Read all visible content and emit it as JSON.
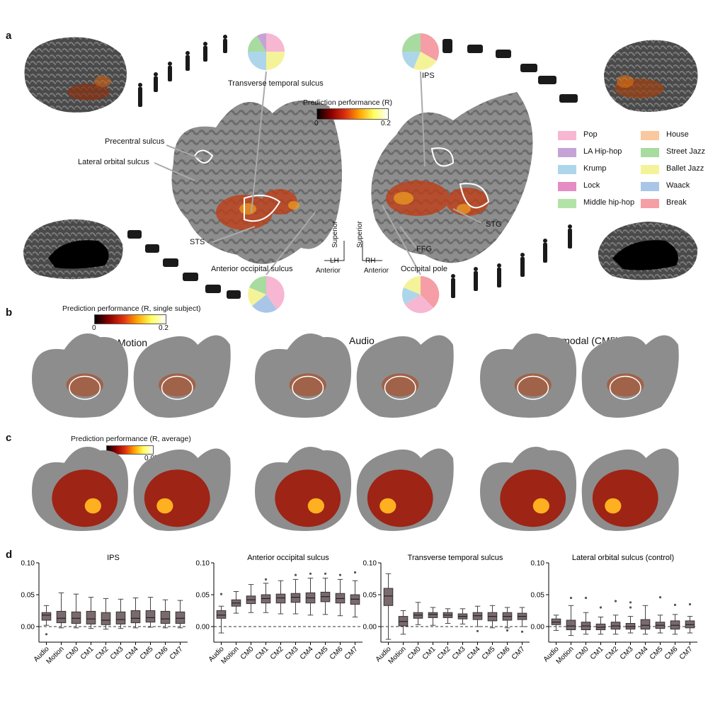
{
  "panel_labels": {
    "a": "a",
    "b": "b",
    "c": "c",
    "d": "d"
  },
  "panel_a": {
    "colorbar": {
      "title": "Prediction performance (R)",
      "min": "0",
      "max": "0.2"
    },
    "region_labels": {
      "transverse_temporal": "Transverse temporal sulcus",
      "ips": "IPS",
      "precentral": "Precentral sulcus",
      "lateral_orbital": "Lateral orbital sulcus",
      "sts": "STS",
      "stg": "STG",
      "ffg": "FFG",
      "anterior_occipital": "Anterior occipital sulcus",
      "occipital_pole": "Occipital pole"
    },
    "orientation": {
      "lh": "LH",
      "rh": "RH",
      "superior_l": "Superior",
      "superior_r": "Superior",
      "anterior_l": "Anterior",
      "anterior_r": "Anterior"
    },
    "legend": [
      {
        "label": "Pop",
        "color": "#f7b6d2"
      },
      {
        "label": "House",
        "color": "#f9c89f"
      },
      {
        "label": "LA Hip-hop",
        "color": "#c5a3d6"
      },
      {
        "label": "Street Jazz",
        "color": "#a8dba0"
      },
      {
        "label": "Krump",
        "color": "#aed6ea"
      },
      {
        "label": "Ballet Jazz",
        "color": "#f4f39a"
      },
      {
        "label": "Lock",
        "color": "#e58cc4"
      },
      {
        "label": "Waack",
        "color": "#a9c6e8"
      },
      {
        "label": "Middle hip-hop",
        "color": "#b2e3a6"
      },
      {
        "label": "Break",
        "color": "#f59ea5"
      }
    ]
  },
  "panel_b": {
    "colorbar": {
      "title": "Prediction performance (R, single subject)",
      "min": "0",
      "max": "0.2"
    },
    "maps": [
      "Motion",
      "Audio",
      "Cross-modal (CM5)"
    ]
  },
  "panel_c": {
    "colorbar": {
      "title": "Prediction performance (R, average)",
      "min": "0",
      "max": "0.05"
    }
  },
  "chart_data": [
    {
      "type": "box",
      "title": "IPS",
      "categories": [
        "Audio",
        "Motion",
        "CM0",
        "CM1",
        "CM2",
        "CM3",
        "CM4",
        "CM5",
        "CM6",
        "CM7"
      ],
      "ylim": [
        -0.02,
        0.1
      ],
      "yticks": [
        "0.00",
        "0.05",
        "0.10"
      ],
      "medians": [
        0.018,
        0.013,
        0.013,
        0.012,
        0.01,
        0.011,
        0.013,
        0.014,
        0.012,
        0.013
      ],
      "q1": [
        0.01,
        0.006,
        0.005,
        0.004,
        0.003,
        0.004,
        0.006,
        0.007,
        0.005,
        0.005
      ],
      "q3": [
        0.022,
        0.024,
        0.023,
        0.024,
        0.022,
        0.023,
        0.025,
        0.025,
        0.024,
        0.023
      ],
      "whisker_low": [
        0.002,
        -0.002,
        -0.002,
        -0.003,
        -0.004,
        -0.003,
        -0.002,
        -0.001,
        -0.002,
        -0.002
      ],
      "whisker_high": [
        0.033,
        0.053,
        0.051,
        0.046,
        0.044,
        0.043,
        0.045,
        0.046,
        0.042,
        0.041
      ],
      "outliers": [
        [
          -0.012
        ],
        [],
        [],
        [],
        [],
        [],
        [],
        [],
        [],
        []
      ]
    },
    {
      "type": "box",
      "title": "Anterior occipital sulcus",
      "categories": [
        "Audio",
        "Motion",
        "CM0",
        "CM1",
        "CM2",
        "CM3",
        "CM4",
        "CM5",
        "CM6",
        "CM7"
      ],
      "ylim": [
        -0.02,
        0.1
      ],
      "yticks": [
        "0.00",
        "0.05",
        "0.10"
      ],
      "medians": [
        0.018,
        0.037,
        0.042,
        0.044,
        0.045,
        0.046,
        0.045,
        0.047,
        0.044,
        0.043
      ],
      "q1": [
        0.013,
        0.032,
        0.036,
        0.037,
        0.037,
        0.038,
        0.037,
        0.039,
        0.037,
        0.035
      ],
      "q3": [
        0.025,
        0.042,
        0.048,
        0.05,
        0.051,
        0.052,
        0.053,
        0.054,
        0.052,
        0.05
      ],
      "whisker_low": [
        -0.01,
        0.021,
        0.022,
        0.022,
        0.02,
        0.02,
        0.018,
        0.019,
        0.017,
        0.015
      ],
      "whisker_high": [
        0.032,
        0.055,
        0.066,
        0.068,
        0.072,
        0.074,
        0.076,
        0.076,
        0.074,
        0.072
      ],
      "outliers": [
        [
          0.051
        ],
        [],
        [],
        [
          0.074
        ],
        [],
        [
          0.081
        ],
        [
          0.083
        ],
        [
          0.083
        ],
        [
          0.081
        ],
        [
          0.085
        ]
      ]
    },
    {
      "type": "box",
      "title": "Transverse temporal sulcus",
      "categories": [
        "Audio",
        "Motion",
        "CM0",
        "CM1",
        "CM2",
        "CM3",
        "CM4",
        "CM5",
        "CM6",
        "CM7"
      ],
      "ylim": [
        -0.02,
        0.1
      ],
      "yticks": [
        "0.00",
        "0.05",
        "0.10"
      ],
      "medians": [
        0.048,
        0.008,
        0.018,
        0.019,
        0.018,
        0.016,
        0.017,
        0.016,
        0.016,
        0.016
      ],
      "q1": [
        0.033,
        0.001,
        0.013,
        0.014,
        0.014,
        0.012,
        0.011,
        0.009,
        0.01,
        0.011
      ],
      "q3": [
        0.06,
        0.016,
        0.022,
        0.022,
        0.022,
        0.02,
        0.022,
        0.022,
        0.022,
        0.021
      ],
      "whisker_low": [
        -0.02,
        -0.012,
        0.003,
        0.002,
        0.005,
        0.004,
        0.0,
        -0.002,
        -0.002,
        0.0
      ],
      "whisker_high": [
        0.083,
        0.025,
        0.038,
        0.03,
        0.028,
        0.028,
        0.032,
        0.033,
        0.03,
        0.03
      ],
      "outliers": [
        [],
        [],
        [],
        [],
        [],
        [],
        [
          -0.007
        ],
        [],
        [
          -0.006
        ],
        [
          -0.008
        ]
      ]
    },
    {
      "type": "box",
      "title": "Lateral orbital sulcus (control)",
      "categories": [
        "Audio",
        "Motion",
        "CM0",
        "CM1",
        "CM2",
        "CM3",
        "CM4",
        "CM5",
        "CM6",
        "CM7"
      ],
      "ylim": [
        -0.02,
        0.1
      ],
      "yticks": [
        "0.00",
        "0.05",
        "0.10"
      ],
      "medians": [
        0.007,
        0.001,
        0.001,
        -0.001,
        0.001,
        0.0,
        0.002,
        0.002,
        0.002,
        0.003
      ],
      "q1": [
        0.003,
        -0.005,
        -0.005,
        -0.005,
        -0.004,
        -0.004,
        -0.004,
        -0.003,
        -0.004,
        -0.002
      ],
      "q3": [
        0.012,
        0.01,
        0.007,
        0.004,
        0.007,
        0.005,
        0.011,
        0.007,
        0.009,
        0.009
      ],
      "whisker_low": [
        -0.006,
        -0.014,
        -0.012,
        -0.012,
        -0.012,
        -0.01,
        -0.012,
        -0.01,
        -0.012,
        -0.01
      ],
      "whisker_high": [
        0.018,
        0.033,
        0.022,
        0.015,
        0.018,
        0.016,
        0.033,
        0.018,
        0.019,
        0.016
      ],
      "outliers": [
        [],
        [
          0.045
        ],
        [
          0.045
        ],
        [
          0.03
        ],
        [
          0.04
        ],
        [
          0.038,
          0.03
        ],
        [],
        [
          0.046
        ],
        [
          0.034
        ],
        [
          0.035
        ]
      ]
    }
  ]
}
